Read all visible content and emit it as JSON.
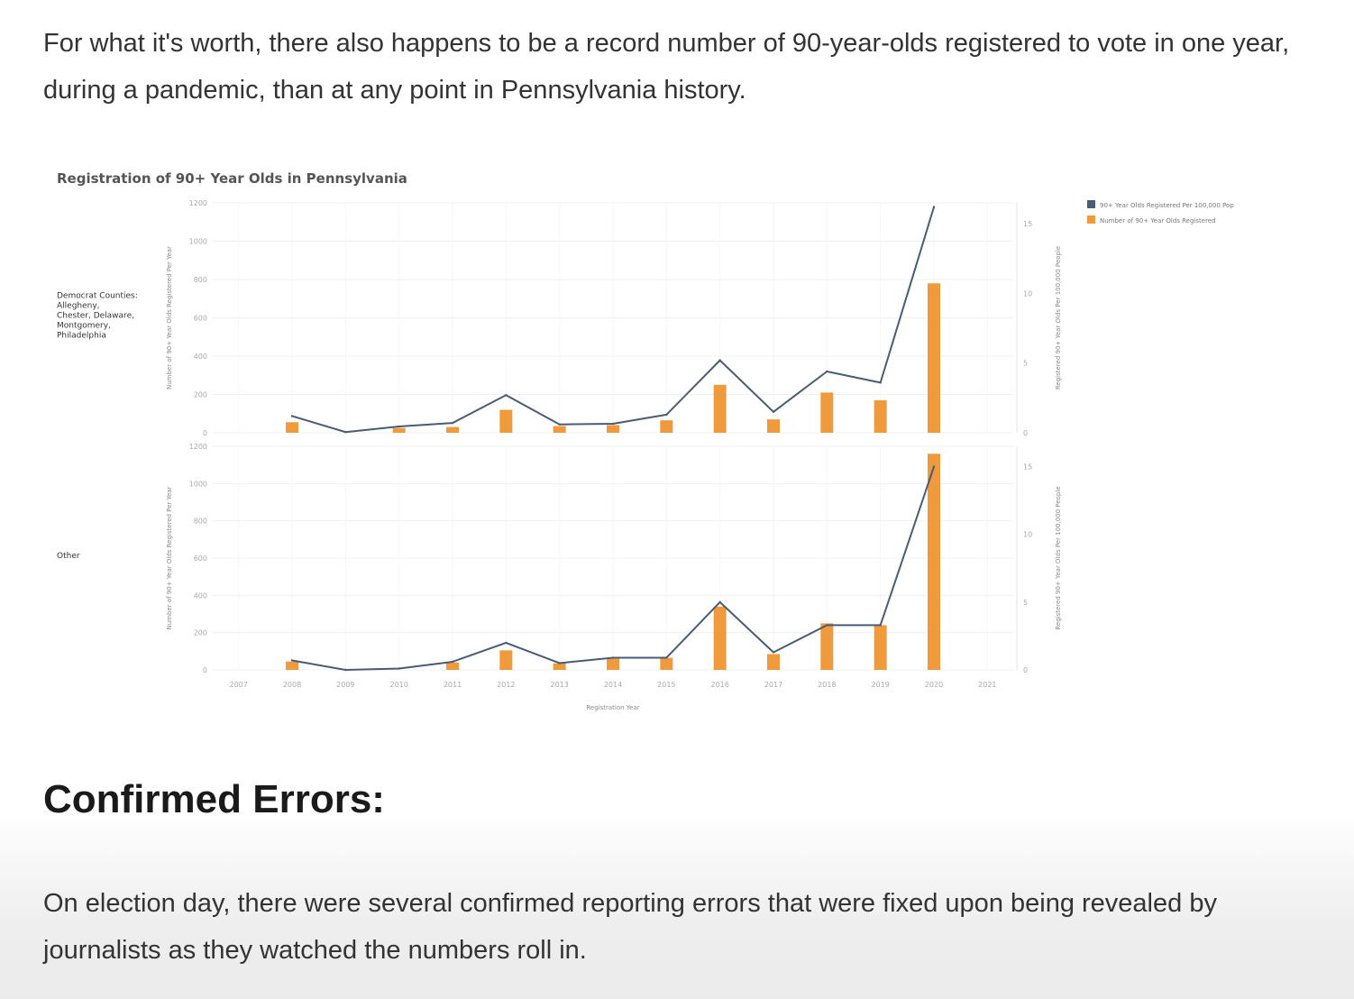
{
  "article": {
    "intro_text": "For what it's worth, there also happens to be a record number of 90-year-olds registered to vote in one year, during a pandemic, than at any point in Pennsylvania history.",
    "heading": "Confirmed Errors:",
    "outro_text": "On election day, there were several confirmed reporting errors that were fixed upon being revealed by journalists as they watched the numbers roll in."
  },
  "colors": {
    "bar": "#f09a3e",
    "line": "#4a5b75",
    "grid": "#f0f0f0"
  },
  "chart_data": {
    "type": "bar",
    "title": "Registration of 90+ Year Olds in Pennsylvania",
    "xlabel": "Registration Year",
    "categories": [
      "2007",
      "2008",
      "2009",
      "2010",
      "2011",
      "2012",
      "2013",
      "2014",
      "2015",
      "2016",
      "2017",
      "2018",
      "2019",
      "2020",
      "2021"
    ],
    "legend": {
      "position": "top-right",
      "entries": [
        "90+ Year Olds Registered Per 100,000 Pop",
        "Number of 90+ Year Olds Registered"
      ]
    },
    "panels": [
      {
        "label": "Democrat Counties: Allegheny, Chester, Delaware, Montgomery, Philadelphia",
        "ylabel_left": "Number of 90+ Year Olds Registered Per Year",
        "ylabel_right": "Registered 90+ Year Olds Per 100,000 People",
        "ylim_left": [
          0,
          1200
        ],
        "ylim_right": [
          0,
          16.5
        ],
        "left_ticks": [
          "0",
          "200",
          "400",
          "600",
          "800",
          "1000",
          "1200"
        ],
        "right_ticks": [
          "0",
          "5",
          "10",
          "15"
        ],
        "series": [
          {
            "name": "Number of 90+ Year Olds Registered",
            "axis": "left",
            "values": [
              null,
              55,
              null,
              25,
              30,
              120,
              35,
              40,
              65,
              250,
              70,
              210,
              170,
              780,
              null
            ]
          },
          {
            "name": "90+ Year Olds Registered Per 100,000 Pop",
            "axis": "right",
            "values": [
              null,
              1.2,
              0.05,
              0.45,
              0.7,
              2.7,
              0.6,
              0.65,
              1.3,
              5.2,
              1.5,
              4.4,
              3.6,
              16.2,
              null
            ]
          }
        ]
      },
      {
        "label": "Other",
        "ylabel_left": "Number of 90+ Year Olds Registered Per Year",
        "ylabel_right": "Registered 90+ Year Olds Per 100,000 People",
        "ylim_left": [
          0,
          1200
        ],
        "ylim_right": [
          0,
          16.5
        ],
        "left_ticks": [
          "0",
          "200",
          "400",
          "600",
          "800",
          "1000",
          "1200"
        ],
        "right_ticks": [
          "0",
          "5",
          "10",
          "15"
        ],
        "series": [
          {
            "name": "Number of 90+ Year Olds Registered",
            "axis": "left",
            "values": [
              null,
              45,
              null,
              null,
              40,
              105,
              35,
              60,
              65,
              340,
              85,
              250,
              240,
              1160,
              null
            ]
          },
          {
            "name": "90+ Year Olds Registered Per 100,000 Pop",
            "axis": "right",
            "values": [
              null,
              0.7,
              0.0,
              0.1,
              0.6,
              2.0,
              0.5,
              0.9,
              0.9,
              5.0,
              1.3,
              3.3,
              3.3,
              15.0,
              null
            ]
          }
        ]
      }
    ]
  }
}
